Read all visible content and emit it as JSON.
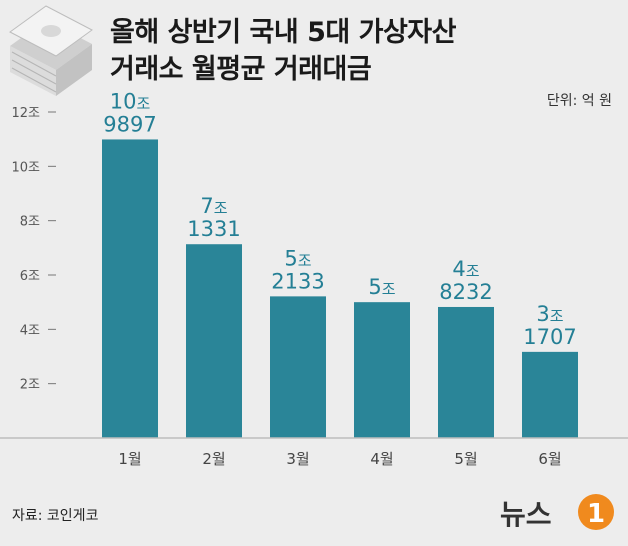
{
  "title_lines": [
    "올해 상반기 국내 5대 가상자산",
    "거래소 월평균 거래대금"
  ],
  "unit": "단위: 억 원",
  "source": "자료: 코인게코",
  "logo_text": "뉴스1",
  "icon": "money-stack-icon",
  "colors": {
    "bar": "#2a8598",
    "label": "#247f95",
    "background": "#ededed"
  },
  "chart_data": {
    "type": "bar",
    "title": "올해 상반기 국내 5대 가상자산 거래소 월평균 거래대금",
    "unit": "단위: 억 원",
    "categories": [
      "1월",
      "2월",
      "3월",
      "4월",
      "5월",
      "6월"
    ],
    "values": [
      109897,
      71331,
      52133,
      50000,
      48232,
      31707
    ],
    "labels": [
      [
        "10조",
        "9897"
      ],
      [
        "7조",
        "1331"
      ],
      [
        "5조",
        "2133"
      ],
      [
        "5조"
      ],
      [
        "4조",
        "8232"
      ],
      [
        "3조",
        "1707"
      ]
    ],
    "yticks": [
      {
        "value": 20000,
        "label": "2조"
      },
      {
        "value": 40000,
        "label": "4조"
      },
      {
        "value": 60000,
        "label": "6조"
      },
      {
        "value": 80000,
        "label": "8조"
      },
      {
        "value": 100000,
        "label": "10조"
      },
      {
        "value": 120000,
        "label": "12조"
      }
    ],
    "ylim": [
      0,
      120000
    ],
    "grid": false,
    "legend": "none"
  }
}
